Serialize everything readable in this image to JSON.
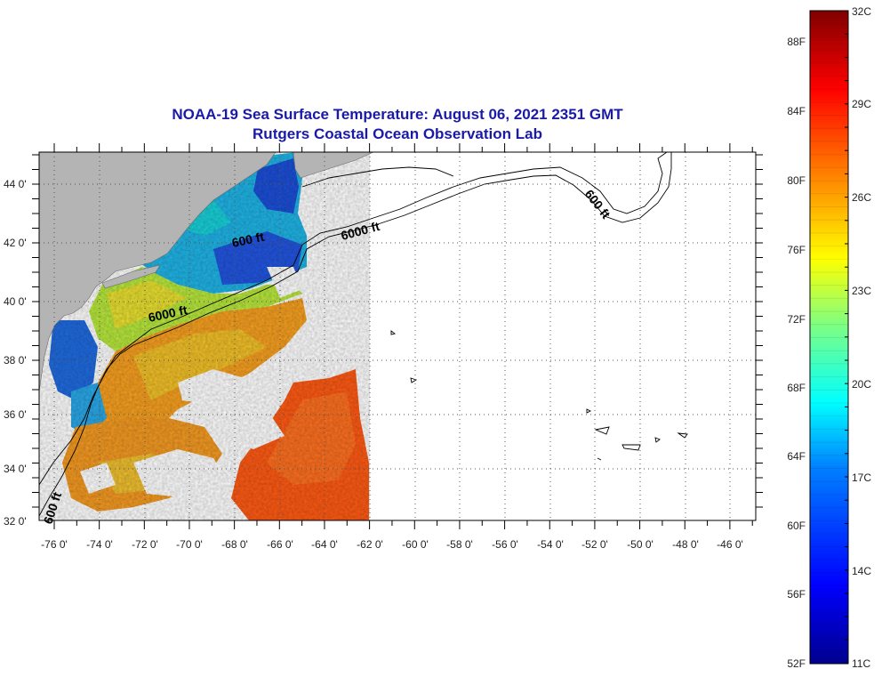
{
  "title": {
    "line1": "NOAA-19 Sea Surface Temperature:  August 06, 2021 2351 GMT",
    "line2": "Rutgers Coastal Ocean Observation Lab"
  },
  "map": {
    "lat_labels": [
      "44 0'",
      "42 0'",
      "40 0'",
      "38 0'",
      "36 0'",
      "34 0'",
      "32 0'"
    ],
    "lon_labels": [
      "-76 0'",
      "-74 0'",
      "-72 0'",
      "-70 0'",
      "-68 0'",
      "-66 0'",
      "-64 0'",
      "-62 0'",
      "-60 0'",
      "-58 0'",
      "-56 0'",
      "-54 0'",
      "-52 0'",
      "-50 0'",
      "-48 0'",
      "-46 0'"
    ],
    "contour_labels": [
      "600 ft",
      "6000 ft",
      "6000 ft",
      "600 ft",
      "600 ft"
    ],
    "colors": {
      "land": "#b4b4b4",
      "grid": "#555555",
      "title": "#1a1aa8"
    }
  },
  "colorbar": {
    "fahrenheit_labels": [
      "88F",
      "84F",
      "80F",
      "76F",
      "72F",
      "68F",
      "64F",
      "60F",
      "56F",
      "52F"
    ],
    "celsius_labels": [
      "32C",
      "29C",
      "26C",
      "23C",
      "20C",
      "17C",
      "14C",
      "11C"
    ],
    "range_celsius": [
      11,
      32
    ],
    "colormap": [
      "#00008f",
      "#0000ff",
      "#0080ff",
      "#00ffff",
      "#80ff80",
      "#ffff00",
      "#ff8000",
      "#ff0000",
      "#800000"
    ]
  }
}
